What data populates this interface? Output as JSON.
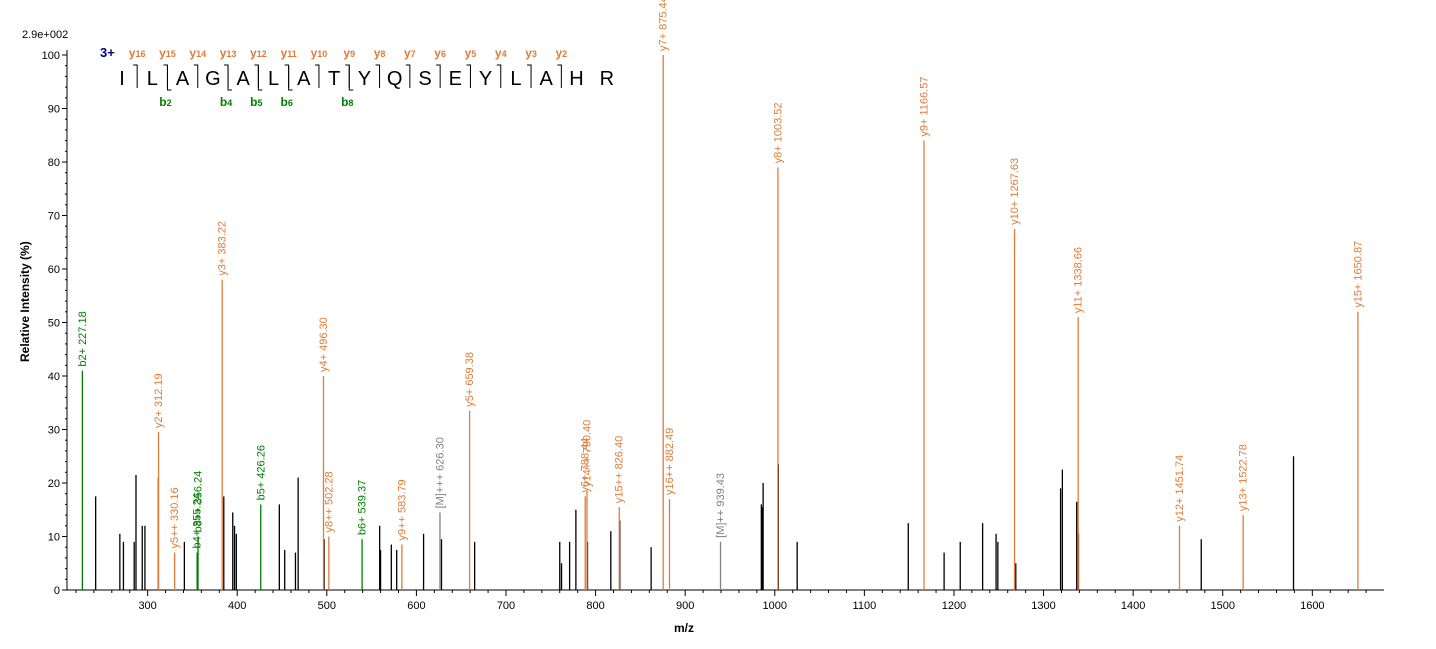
{
  "chart_data": {
    "type": "bar",
    "scale_label": "2.9e+002",
    "xlabel": "m/z",
    "ylabel": "Relative   Intensity (%)",
    "xlim": [
      210,
      1680
    ],
    "ylim": [
      0,
      100
    ],
    "xticks": [
      300,
      400,
      500,
      600,
      700,
      800,
      900,
      1000,
      1100,
      1200,
      1300,
      1400,
      1500,
      1600
    ],
    "yticks": [
      0,
      10,
      20,
      30,
      40,
      50,
      60,
      70,
      80,
      90,
      100
    ],
    "colors": {
      "b": "#008000",
      "y": "#e07b39",
      "m": "#808080",
      "unassigned": "#000000",
      "charge": "#00008b"
    },
    "peptide": {
      "charge": "3+",
      "sequence": [
        "I",
        "L",
        "A",
        "G",
        "A",
        "L",
        "A",
        "T",
        "Y",
        "Q",
        "S",
        "E",
        "Y",
        "L",
        "A",
        "H",
        "R"
      ],
      "y_ions": [
        {
          "label": "y",
          "num": "16",
          "after": 1
        },
        {
          "label": "y",
          "num": "15",
          "after": 2
        },
        {
          "label": "y",
          "num": "14",
          "after": 3
        },
        {
          "label": "y",
          "num": "13",
          "after": 4
        },
        {
          "label": "y",
          "num": "12",
          "after": 5
        },
        {
          "label": "y",
          "num": "11",
          "after": 6
        },
        {
          "label": "y",
          "num": "10",
          "after": 7
        },
        {
          "label": "y",
          "num": "9",
          "after": 8
        },
        {
          "label": "y",
          "num": "8",
          "after": 9
        },
        {
          "label": "y",
          "num": "7",
          "after": 10
        },
        {
          "label": "y",
          "num": "6",
          "after": 11
        },
        {
          "label": "y",
          "num": "5",
          "after": 12
        },
        {
          "label": "y",
          "num": "4",
          "after": 13
        },
        {
          "label": "y",
          "num": "3",
          "after": 14
        },
        {
          "label": "y",
          "num": "2",
          "after": 15
        }
      ],
      "b_ions": [
        {
          "label": "b",
          "num": "2",
          "after": 2
        },
        {
          "label": "b",
          "num": "4",
          "after": 4
        },
        {
          "label": "b",
          "num": "5",
          "after": 5
        },
        {
          "label": "b",
          "num": "6",
          "after": 6
        },
        {
          "label": "b",
          "num": "8",
          "after": 8
        }
      ]
    },
    "peaks": [
      {
        "mz": 227.18,
        "i": 41,
        "type": "b",
        "label": "b2+ 227.18"
      },
      {
        "mz": 312.19,
        "i": 29.5,
        "type": "y",
        "label": "y2+ 312.19"
      },
      {
        "mz": 330.16,
        "i": 7,
        "type": "y",
        "label": "y5++ 330.16"
      },
      {
        "mz": 355.24,
        "i": 7,
        "type": "b",
        "label": "b4+ 355.24"
      },
      {
        "mz": 356.24,
        "i": 10,
        "type": "b",
        "label": "b8++ 356.24"
      },
      {
        "mz": 383.22,
        "i": 58,
        "type": "y",
        "label": "y3+ 383.22"
      },
      {
        "mz": 426.26,
        "i": 16,
        "type": "b",
        "label": "b5+ 426.26"
      },
      {
        "mz": 496.3,
        "i": 40,
        "type": "y",
        "label": "y4+ 496.30"
      },
      {
        "mz": 502.28,
        "i": 10,
        "type": "y",
        "label": "y8++ 502.28"
      },
      {
        "mz": 539.37,
        "i": 9.5,
        "type": "b",
        "label": "b6+ 539.37"
      },
      {
        "mz": 583.79,
        "i": 8.5,
        "type": "y",
        "label": "y9++ 583.79"
      },
      {
        "mz": 626.3,
        "i": 14.5,
        "type": "m",
        "label": "[M]+++ 626.30"
      },
      {
        "mz": 659.38,
        "i": 33.5,
        "type": "y",
        "label": "y5+ 659.38"
      },
      {
        "mz": 788.44,
        "i": 17.5,
        "type": "y",
        "label": "y6+ 788.44"
      },
      {
        "mz": 790.4,
        "i": 18.5,
        "type": "y",
        "label": "y14++ 790.40"
      },
      {
        "mz": 826.4,
        "i": 15.5,
        "type": "y",
        "label": "y15++ 826.40"
      },
      {
        "mz": 875.44,
        "i": 100,
        "type": "y",
        "label": "y7+ 875.44"
      },
      {
        "mz": 882.49,
        "i": 17,
        "type": "y",
        "label": "y16++ 882.49"
      },
      {
        "mz": 939.43,
        "i": 9,
        "type": "m",
        "label": "[M]++ 939.43"
      },
      {
        "mz": 1003.52,
        "i": 79,
        "type": "y",
        "label": "y8+ 1003.52"
      },
      {
        "mz": 1166.57,
        "i": 84,
        "type": "y",
        "label": "y9+ 1166.57"
      },
      {
        "mz": 1267.63,
        "i": 67.5,
        "type": "y",
        "label": "y10+ 1267.63"
      },
      {
        "mz": 1338.66,
        "i": 51,
        "type": "y",
        "label": "y11+ 1338.66"
      },
      {
        "mz": 1451.74,
        "i": 12,
        "type": "y",
        "label": "y12+ 1451.74"
      },
      {
        "mz": 1522.78,
        "i": 14,
        "type": "y",
        "label": "y13+ 1522.78"
      },
      {
        "mz": 1650.87,
        "i": 52,
        "type": "y",
        "label": "y15+ 1650.87"
      }
    ],
    "unlabeled_peaks": [
      {
        "mz": 242,
        "i": 17.5
      },
      {
        "mz": 269,
        "i": 10.5
      },
      {
        "mz": 273,
        "i": 9
      },
      {
        "mz": 285,
        "i": 9
      },
      {
        "mz": 287,
        "i": 21.5
      },
      {
        "mz": 294,
        "i": 12
      },
      {
        "mz": 297,
        "i": 12
      },
      {
        "mz": 312,
        "i": 21
      },
      {
        "mz": 341,
        "i": 9
      },
      {
        "mz": 385,
        "i": 17.5
      },
      {
        "mz": 395,
        "i": 14.5
      },
      {
        "mz": 397,
        "i": 12
      },
      {
        "mz": 399,
        "i": 10.5
      },
      {
        "mz": 447,
        "i": 16
      },
      {
        "mz": 453,
        "i": 7.5
      },
      {
        "mz": 465,
        "i": 7
      },
      {
        "mz": 468,
        "i": 21
      },
      {
        "mz": 497,
        "i": 9.5
      },
      {
        "mz": 559,
        "i": 12
      },
      {
        "mz": 560,
        "i": 7.5
      },
      {
        "mz": 572,
        "i": 8.5
      },
      {
        "mz": 578,
        "i": 7.5
      },
      {
        "mz": 608,
        "i": 10.5
      },
      {
        "mz": 628,
        "i": 9.5
      },
      {
        "mz": 665,
        "i": 9
      },
      {
        "mz": 760,
        "i": 9
      },
      {
        "mz": 762,
        "i": 5
      },
      {
        "mz": 771,
        "i": 9
      },
      {
        "mz": 778,
        "i": 15
      },
      {
        "mz": 791,
        "i": 9
      },
      {
        "mz": 817,
        "i": 11
      },
      {
        "mz": 827,
        "i": 13
      },
      {
        "mz": 862,
        "i": 8
      },
      {
        "mz": 985,
        "i": 16
      },
      {
        "mz": 986,
        "i": 15.5
      },
      {
        "mz": 987,
        "i": 20
      },
      {
        "mz": 1004,
        "i": 23.5
      },
      {
        "mz": 1025,
        "i": 9
      },
      {
        "mz": 1149,
        "i": 12.5
      },
      {
        "mz": 1189,
        "i": 7
      },
      {
        "mz": 1207,
        "i": 9
      },
      {
        "mz": 1232,
        "i": 12.5
      },
      {
        "mz": 1247,
        "i": 10.5
      },
      {
        "mz": 1249,
        "i": 9
      },
      {
        "mz": 1269,
        "i": 5
      },
      {
        "mz": 1319,
        "i": 19
      },
      {
        "mz": 1321,
        "i": 22.5
      },
      {
        "mz": 1337,
        "i": 16.5
      },
      {
        "mz": 1339,
        "i": 10.5
      },
      {
        "mz": 1476,
        "i": 9.5
      },
      {
        "mz": 1579,
        "i": 25
      }
    ]
  }
}
